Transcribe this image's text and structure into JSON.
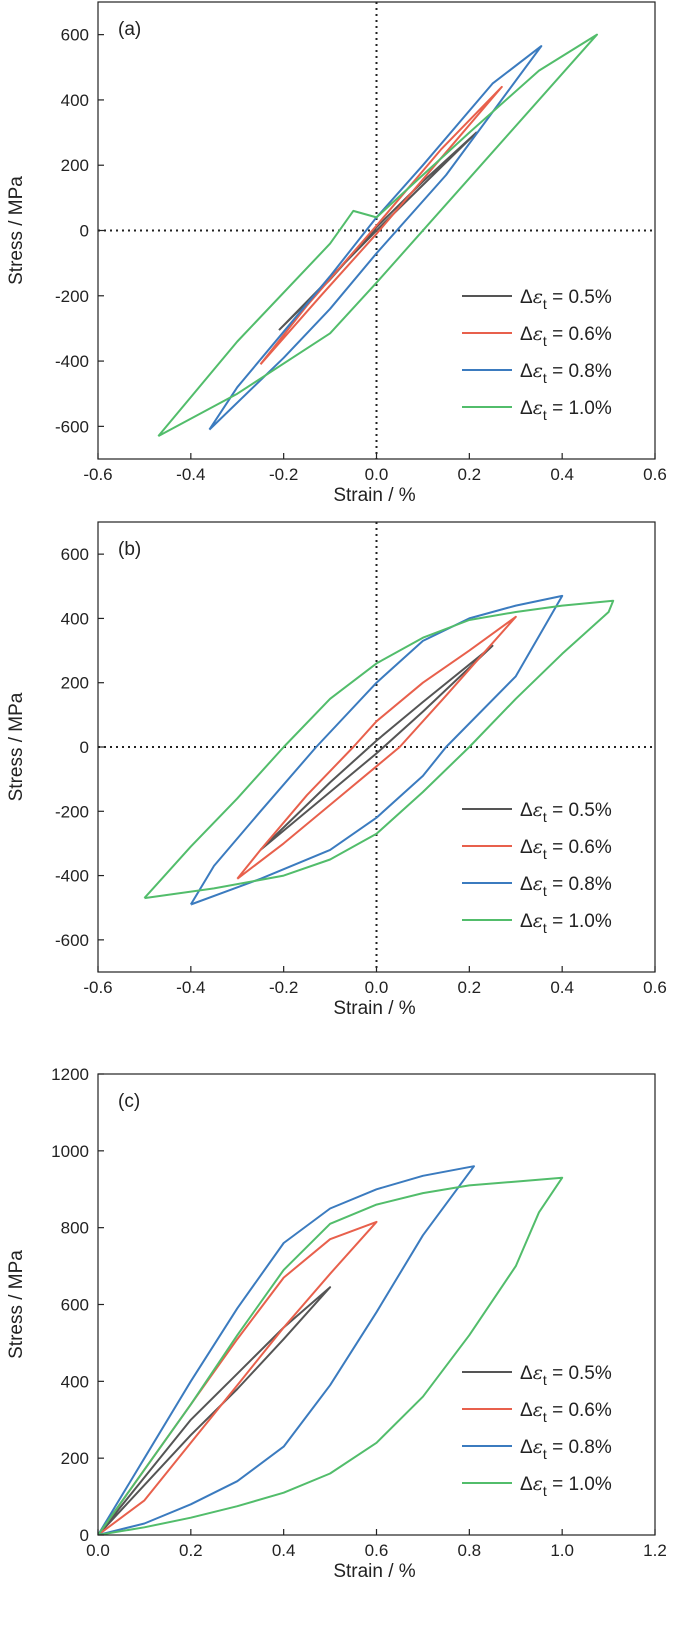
{
  "colors": {
    "0.5": "#555555",
    "0.6": "#e8604c",
    "0.8": "#3b7bbf",
    "1.0": "#52bd6b",
    "axis": "#222222"
  },
  "chart_data": [
    {
      "type": "line",
      "panel_label": "(a)",
      "xlabel": "Strain / %",
      "ylabel": "Stress / MPa",
      "xlim": [
        -0.6,
        0.6
      ],
      "ylim": [
        -700,
        700
      ],
      "x_ticks": [
        "-0.6",
        "-0.4",
        "-0.2",
        "0.0",
        "0.2",
        "0.4",
        "0.6"
      ],
      "y_ticks": [
        "-600",
        "-400",
        "-200",
        "0",
        "200",
        "400",
        "600"
      ],
      "reference_lines": {
        "x": 0,
        "y": 0,
        "style": "dotted"
      },
      "legend_position": "lower-right",
      "series": [
        {
          "name": "Δε_t = 0.5%",
          "legend": {
            "pre": "Δ",
            "sym": "ε",
            "sub": "t",
            "post": " = 0.5%"
          },
          "color_key": "0.5",
          "points": [
            [
              -0.21,
              -305
            ],
            [
              0.0,
              0
            ],
            [
              0.215,
              300
            ],
            [
              0.1,
              150
            ],
            [
              0.0,
              10
            ],
            [
              -0.1,
              -150
            ],
            [
              -0.21,
              -305
            ]
          ]
        },
        {
          "name": "Δε_t = 0.6%",
          "legend": {
            "pre": "Δ",
            "sym": "ε",
            "sub": "t",
            "post": " = 0.6%"
          },
          "color_key": "0.6",
          "points": [
            [
              -0.25,
              -410
            ],
            [
              -0.12,
              -200
            ],
            [
              0.0,
              -10
            ],
            [
              0.27,
              440
            ],
            [
              0.14,
              250
            ],
            [
              0.0,
              15
            ],
            [
              -0.15,
              -230
            ],
            [
              -0.25,
              -410
            ]
          ]
        },
        {
          "name": "Δε_t = 0.8%",
          "legend": {
            "pre": "Δ",
            "sym": "ε",
            "sub": "t",
            "post": " = 0.8%"
          },
          "color_key": "0.8",
          "points": [
            [
              -0.36,
              -610
            ],
            [
              -0.2,
              -390
            ],
            [
              -0.1,
              -240
            ],
            [
              0.0,
              -70
            ],
            [
              0.15,
              170
            ],
            [
              0.355,
              565
            ],
            [
              0.25,
              450
            ],
            [
              0.1,
              200
            ],
            [
              0.0,
              40
            ],
            [
              -0.1,
              -140
            ],
            [
              -0.2,
              -310
            ],
            [
              -0.3,
              -480
            ],
            [
              -0.36,
              -610
            ]
          ]
        },
        {
          "name": "Δε_t = 1.0%",
          "legend": {
            "pre": "Δ",
            "sym": "ε",
            "sub": "t",
            "post": " = 1.0%"
          },
          "color_key": "1.0",
          "points": [
            [
              -0.47,
              -630
            ],
            [
              -0.3,
              -500
            ],
            [
              -0.1,
              -315
            ],
            [
              0.0,
              -160
            ],
            [
              0.2,
              160
            ],
            [
              0.475,
              600
            ],
            [
              0.35,
              490
            ],
            [
              0.2,
              300
            ],
            [
              0.0,
              40
            ],
            [
              -0.05,
              60
            ],
            [
              -0.1,
              -40
            ],
            [
              -0.3,
              -340
            ],
            [
              -0.47,
              -630
            ]
          ]
        }
      ]
    },
    {
      "type": "line",
      "panel_label": "(b)",
      "xlabel": "Strain / %",
      "ylabel": "Stress / MPa",
      "xlim": [
        -0.6,
        0.6
      ],
      "ylim": [
        -700,
        700
      ],
      "x_ticks": [
        "-0.6",
        "-0.4",
        "-0.2",
        "0.0",
        "0.2",
        "0.4",
        "0.6"
      ],
      "y_ticks": [
        "-600",
        "-400",
        "-200",
        "0",
        "200",
        "400",
        "600"
      ],
      "reference_lines": {
        "x": 0,
        "y": 0,
        "style": "dotted"
      },
      "legend_position": "lower-right",
      "series": [
        {
          "name": "Δε_t = 0.5%",
          "legend": {
            "pre": "Δ",
            "sym": "ε",
            "sub": "t",
            "post": " = 0.5%"
          },
          "color_key": "0.5",
          "points": [
            [
              -0.25,
              -320
            ],
            [
              -0.1,
              -140
            ],
            [
              0.0,
              -20
            ],
            [
              0.1,
              110
            ],
            [
              0.25,
              315
            ],
            [
              0.1,
              140
            ],
            [
              0.0,
              20
            ],
            [
              -0.1,
              -110
            ],
            [
              -0.25,
              -320
            ]
          ]
        },
        {
          "name": "Δε_t = 0.6%",
          "legend": {
            "pre": "Δ",
            "sym": "ε",
            "sub": "t",
            "post": " = 0.6%"
          },
          "color_key": "0.6",
          "points": [
            [
              -0.3,
              -410
            ],
            [
              -0.2,
              -300
            ],
            [
              -0.1,
              -180
            ],
            [
              0.0,
              -60
            ],
            [
              0.05,
              0
            ],
            [
              0.15,
              160
            ],
            [
              0.3,
              405
            ],
            [
              0.2,
              300
            ],
            [
              0.1,
              200
            ],
            [
              0.0,
              80
            ],
            [
              -0.05,
              0
            ],
            [
              -0.15,
              -150
            ],
            [
              -0.25,
              -320
            ],
            [
              -0.3,
              -410
            ]
          ]
        },
        {
          "name": "Δε_t = 0.8%",
          "legend": {
            "pre": "Δ",
            "sym": "ε",
            "sub": "t",
            "post": " = 0.8%"
          },
          "color_key": "0.8",
          "points": [
            [
              -0.4,
              -490
            ],
            [
              -0.25,
              -410
            ],
            [
              -0.1,
              -320
            ],
            [
              0.0,
              -220
            ],
            [
              0.1,
              -90
            ],
            [
              0.15,
              0
            ],
            [
              0.3,
              220
            ],
            [
              0.4,
              470
            ],
            [
              0.3,
              440
            ],
            [
              0.2,
              400
            ],
            [
              0.1,
              330
            ],
            [
              0.0,
              200
            ],
            [
              -0.13,
              0
            ],
            [
              -0.25,
              -200
            ],
            [
              -0.35,
              -370
            ],
            [
              -0.4,
              -490
            ]
          ]
        },
        {
          "name": "Δε_t = 1.0%",
          "legend": {
            "pre": "Δ",
            "sym": "ε",
            "sub": "t",
            "post": " = 1.0%"
          },
          "color_key": "1.0",
          "points": [
            [
              -0.5,
              -470
            ],
            [
              -0.35,
              -440
            ],
            [
              -0.2,
              -400
            ],
            [
              -0.1,
              -350
            ],
            [
              0.0,
              -270
            ],
            [
              0.1,
              -140
            ],
            [
              0.2,
              0
            ],
            [
              0.3,
              150
            ],
            [
              0.4,
              290
            ],
            [
              0.5,
              420
            ],
            [
              0.51,
              455
            ],
            [
              0.4,
              440
            ],
            [
              0.3,
              420
            ],
            [
              0.2,
              395
            ],
            [
              0.1,
              340
            ],
            [
              0.0,
              260
            ],
            [
              -0.1,
              150
            ],
            [
              -0.2,
              0
            ],
            [
              -0.3,
              -160
            ],
            [
              -0.4,
              -310
            ],
            [
              -0.5,
              -470
            ]
          ]
        }
      ]
    },
    {
      "type": "line",
      "panel_label": "(c)",
      "xlabel": "Strain / %",
      "ylabel": "Stress / MPa",
      "xlim": [
        0.0,
        1.2
      ],
      "ylim": [
        0,
        1200
      ],
      "x_ticks": [
        "0.0",
        "0.2",
        "0.4",
        "0.6",
        "0.8",
        "1.0",
        "1.2"
      ],
      "y_ticks": [
        "0",
        "200",
        "400",
        "600",
        "800",
        "1000",
        "1200"
      ],
      "legend_position": "lower-right",
      "series": [
        {
          "name": "Δε_t = 0.5%",
          "legend": {
            "pre": "Δ",
            "sym": "ε",
            "sub": "t",
            "post": " = 0.5%"
          },
          "color_key": "0.5",
          "points": [
            [
              0.0,
              0
            ],
            [
              0.1,
              130
            ],
            [
              0.2,
              260
            ],
            [
              0.3,
              380
            ],
            [
              0.4,
              510
            ],
            [
              0.5,
              645
            ],
            [
              0.4,
              540
            ],
            [
              0.3,
              420
            ],
            [
              0.2,
              300
            ],
            [
              0.1,
              150
            ],
            [
              0.0,
              0
            ]
          ]
        },
        {
          "name": "Δε_t = 0.6%",
          "legend": {
            "pre": "Δ",
            "sym": "ε",
            "sub": "t",
            "post": " = 0.6%"
          },
          "color_key": "0.6",
          "points": [
            [
              0.0,
              0
            ],
            [
              0.1,
              170
            ],
            [
              0.2,
              340
            ],
            [
              0.3,
              510
            ],
            [
              0.4,
              670
            ],
            [
              0.5,
              770
            ],
            [
              0.6,
              815
            ],
            [
              0.5,
              680
            ],
            [
              0.4,
              540
            ],
            [
              0.3,
              390
            ],
            [
              0.2,
              240
            ],
            [
              0.1,
              90
            ],
            [
              0.0,
              0
            ]
          ]
        },
        {
          "name": "Δε_t = 0.8%",
          "legend": {
            "pre": "Δ",
            "sym": "ε",
            "sub": "t",
            "post": " = 0.8%"
          },
          "color_key": "0.8",
          "points": [
            [
              0.0,
              0
            ],
            [
              0.1,
              200
            ],
            [
              0.2,
              400
            ],
            [
              0.3,
              590
            ],
            [
              0.4,
              760
            ],
            [
              0.5,
              850
            ],
            [
              0.6,
              900
            ],
            [
              0.7,
              935
            ],
            [
              0.81,
              960
            ],
            [
              0.7,
              780
            ],
            [
              0.6,
              580
            ],
            [
              0.5,
              390
            ],
            [
              0.4,
              230
            ],
            [
              0.3,
              140
            ],
            [
              0.2,
              80
            ],
            [
              0.1,
              30
            ],
            [
              0.0,
              0
            ]
          ]
        },
        {
          "name": "Δε_t = 1.0%",
          "legend": {
            "pre": "Δ",
            "sym": "ε",
            "sub": "t",
            "post": " = 1.0%"
          },
          "color_key": "1.0",
          "points": [
            [
              0.0,
              0
            ],
            [
              0.1,
              170
            ],
            [
              0.2,
              340
            ],
            [
              0.3,
              520
            ],
            [
              0.4,
              690
            ],
            [
              0.5,
              810
            ],
            [
              0.6,
              860
            ],
            [
              0.7,
              890
            ],
            [
              0.8,
              910
            ],
            [
              0.9,
              920
            ],
            [
              1.0,
              930
            ],
            [
              0.95,
              840
            ],
            [
              0.9,
              700
            ],
            [
              0.8,
              520
            ],
            [
              0.7,
              360
            ],
            [
              0.6,
              240
            ],
            [
              0.5,
              160
            ],
            [
              0.4,
              110
            ],
            [
              0.3,
              75
            ],
            [
              0.2,
              45
            ],
            [
              0.1,
              20
            ],
            [
              0.0,
              0
            ]
          ]
        }
      ]
    }
  ]
}
